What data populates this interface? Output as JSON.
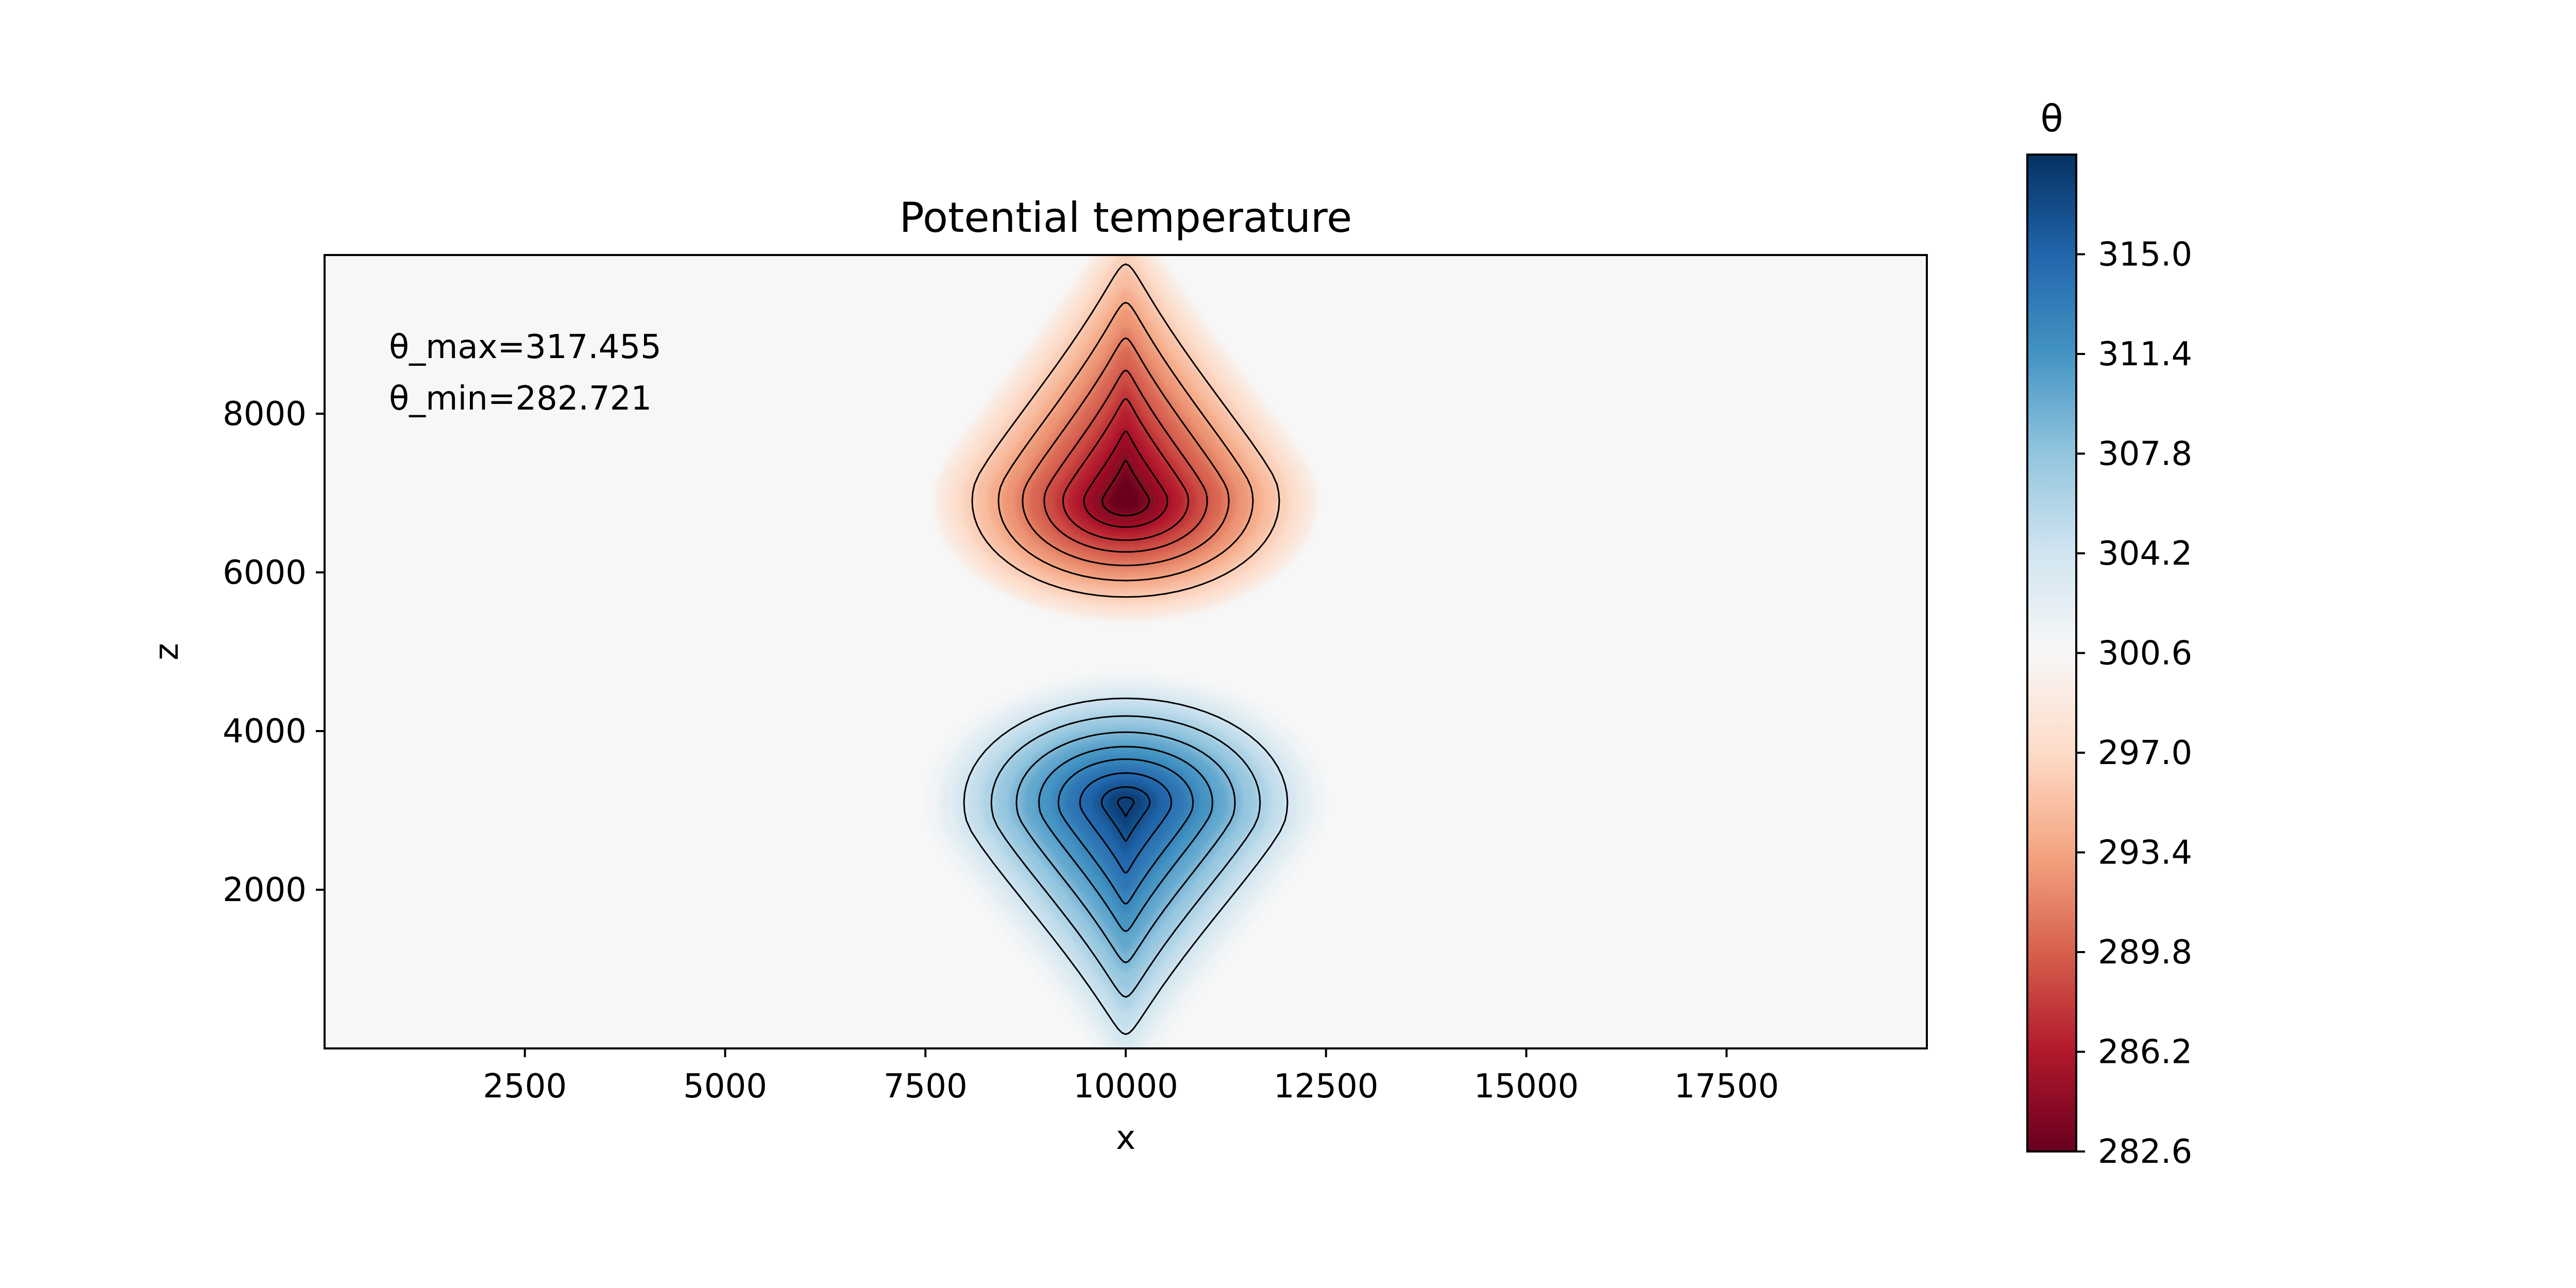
{
  "colors": {
    "cold_core": "#67001f",
    "warm_core": "#053061",
    "neutral": "#f7f7f7",
    "contour": "#000000"
  },
  "chart_data": {
    "type": "heatmap",
    "title": "Potential temperature",
    "xlabel": "x",
    "ylabel": "z",
    "xlim": [
      0,
      20000
    ],
    "ylim": [
      0,
      10000
    ],
    "x_ticks": [
      2500,
      5000,
      7500,
      10000,
      12500,
      15000,
      17500
    ],
    "y_ticks": [
      2000,
      4000,
      6000,
      8000
    ],
    "annotations": [
      "θ_max=317.455",
      "θ_min=282.721"
    ],
    "colorbar": {
      "title": "θ",
      "colormap": "RdBu",
      "range": [
        282.6,
        318.6
      ],
      "ticks": [
        "282.6",
        "286.2",
        "289.8",
        "293.4",
        "297.0",
        "300.6",
        "304.2",
        "307.8",
        "311.4",
        "315.0"
      ]
    },
    "background_theta": 300.0,
    "features": [
      {
        "name": "cold bubble",
        "x": 10000,
        "z": 6900,
        "theta_extreme": 282.721,
        "radius_x": 1900,
        "radius_z": 1200,
        "tail_to": "top"
      },
      {
        "name": "warm bubble",
        "x": 10000,
        "z": 3100,
        "theta_extreme": 317.455,
        "radius_x": 2000,
        "radius_z": 1300,
        "tail_to": "bottom"
      }
    ],
    "contour_levels_cold": [
      298.5,
      295.0,
      292.0,
      289.5,
      287.5,
      285.5,
      284.0
    ],
    "contour_levels_warm": [
      301.5,
      305.0,
      308.0,
      310.5,
      312.5,
      314.5,
      316.2,
      317.3
    ],
    "grid": false
  }
}
